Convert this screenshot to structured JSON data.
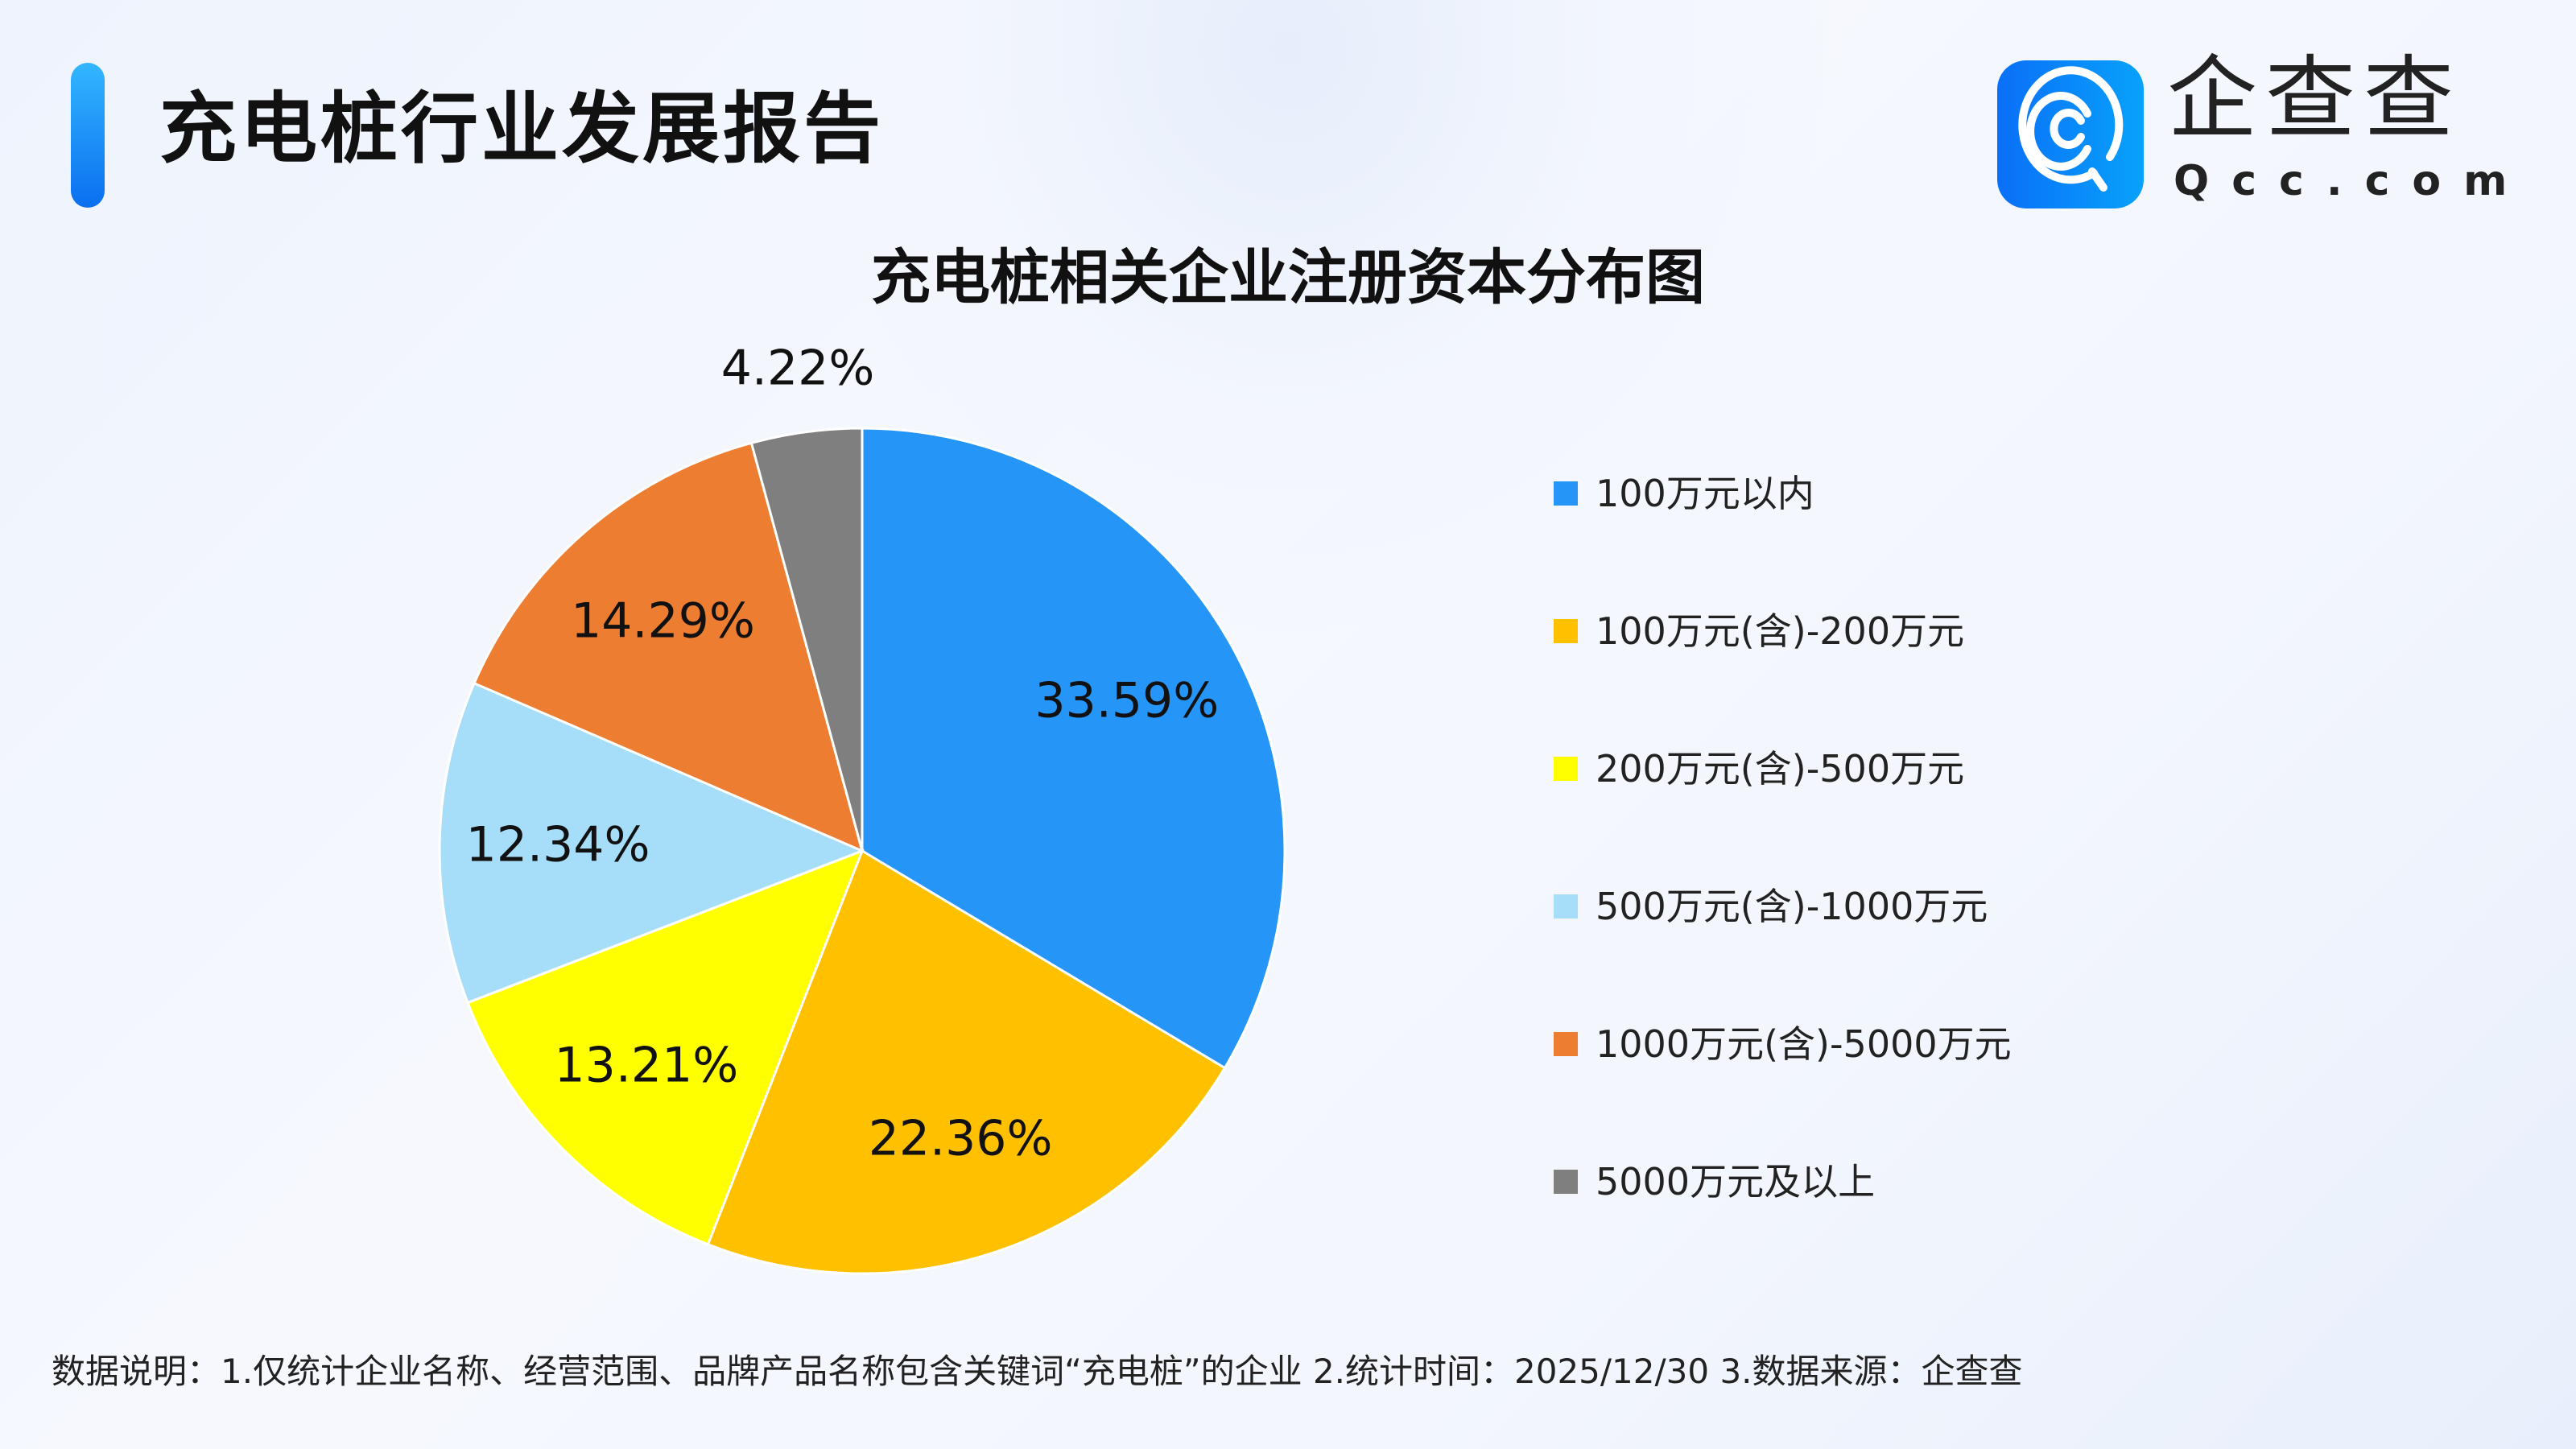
{
  "header": {
    "title": "充电桩行业发展报告",
    "logo_text": "企查查",
    "logo_url": "Qcc.com"
  },
  "chart_data": {
    "type": "pie",
    "title": "充电桩相关企业注册资本分布图",
    "categories": [
      "100万元以内",
      "100万元(含)-200万元",
      "200万元(含)-500万元",
      "500万元(含)-1000万元",
      "1000万元(含)-5000万元",
      "5000万元及以上"
    ],
    "values": [
      33.59,
      22.36,
      13.21,
      12.34,
      14.29,
      4.22
    ],
    "labels": [
      "33.59%",
      "22.36%",
      "13.21%",
      "12.34%",
      "14.29%",
      "4.22%"
    ],
    "colors": [
      "#2695F8",
      "#FFC000",
      "#FFFF00",
      "#A6DDF8",
      "#ED7D31",
      "#7F7F7F"
    ],
    "start": "12 o'clock",
    "direction": "clockwise",
    "legend_position": "right"
  },
  "footer": {
    "note": "数据说明：1.仅统计企业名称、经营范围、品牌产品名称包含关键词“充电桩”的企业   2.统计时间：2025/12/30    3.数据来源：企查查"
  }
}
